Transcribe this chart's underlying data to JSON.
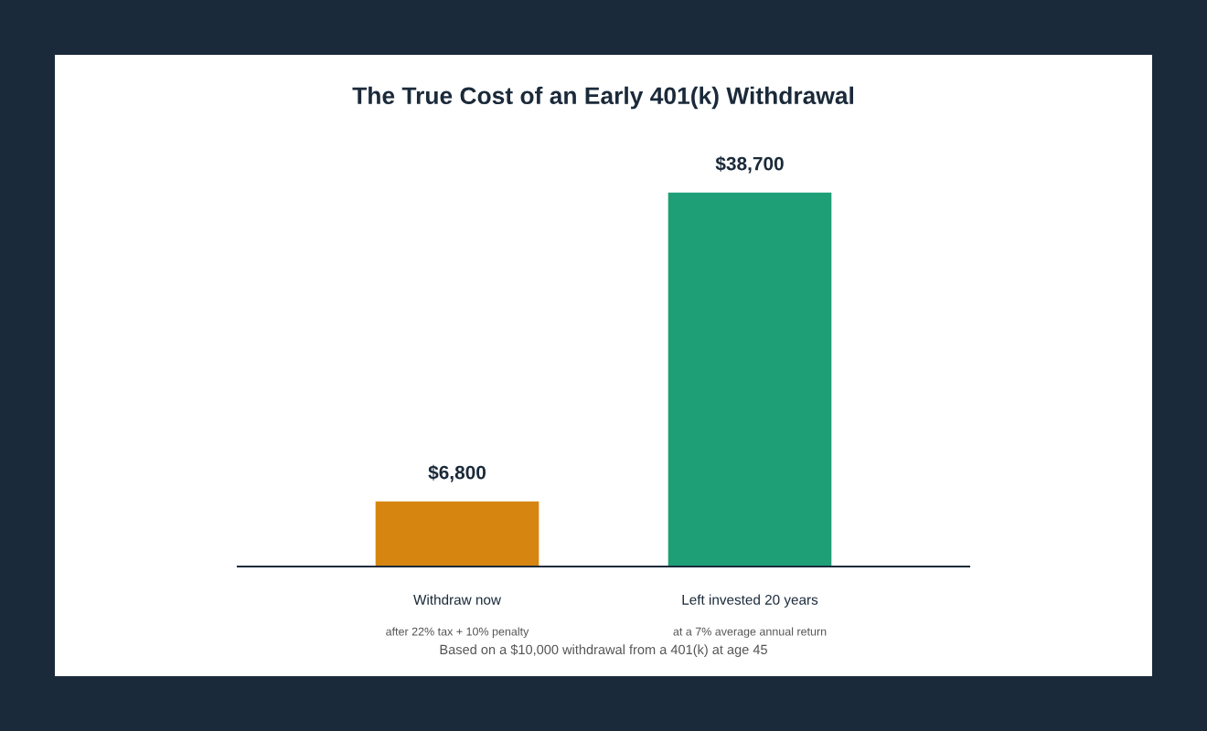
{
  "chart_data": {
    "type": "bar",
    "title": "The True Cost of an Early 401(k) Withdrawal",
    "categories": [
      "Withdraw now",
      "Left invested 20 years"
    ],
    "values": [
      6800,
      38700
    ],
    "colors": [
      "#d68610",
      "#1e9f76"
    ],
    "value_labels": [
      "$6,800",
      "$38,700"
    ],
    "tick_labels": "x",
    "grid": false,
    "legend": false,
    "annotations": [
      "after 22% tax + 10% penalty",
      "at a 7% average annual return",
      "Based on a $10,000 withdrawal from a 401(k) at age 45"
    ]
  }
}
